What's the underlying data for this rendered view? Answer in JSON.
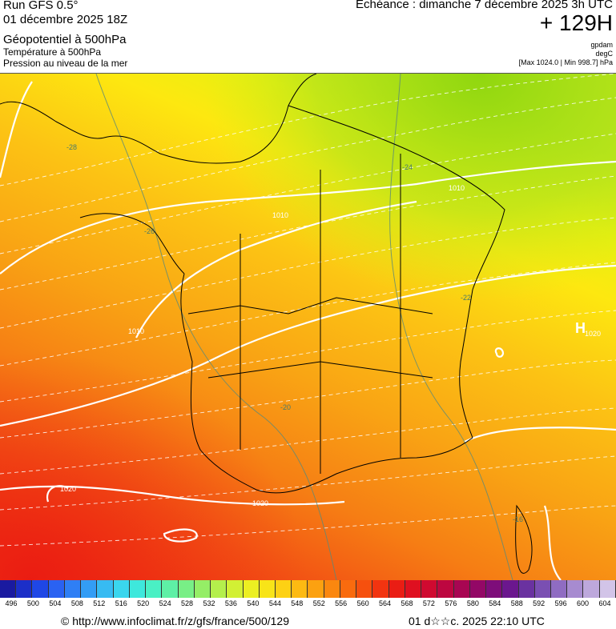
{
  "header": {
    "run": "Run GFS 0.5°",
    "run_date": "01 décembre 2025 18Z",
    "param1": "Géopotentiel à 500hPa",
    "param2": "Température à 500hPa",
    "param3": "Pression au niveau de la mer",
    "validity": "Echéance : dimanche 7 décembre 2025 3h UTC",
    "lead": "+ 129H",
    "unit1": "gpdam",
    "unit2": "degC",
    "minmax": "[Max 1024.0 | Min 998.7] hPa"
  },
  "map": {
    "isobar_labels": [
      "1010",
      "1010",
      "1010",
      "1020",
      "1020",
      "1020"
    ],
    "pressure_center": "H",
    "temp_labels": [
      "-28",
      "-26",
      "-24",
      "-22",
      "-20",
      "-16"
    ]
  },
  "scale": {
    "ticks": [
      "496",
      "500",
      "504",
      "508",
      "512",
      "516",
      "520",
      "524",
      "528",
      "532",
      "536",
      "540",
      "544",
      "548",
      "552",
      "556",
      "560",
      "564",
      "568",
      "572",
      "576",
      "580",
      "584",
      "588",
      "592",
      "596",
      "600",
      "604"
    ],
    "colors": [
      "#1a1aa0",
      "#1c2fc8",
      "#1f47e6",
      "#2a62f2",
      "#2f7ff5",
      "#339df5",
      "#37bbf2",
      "#3ad6ee",
      "#3ee8dc",
      "#4af0c4",
      "#5ef0a6",
      "#78ef86",
      "#95ee66",
      "#b4ef4c",
      "#d2f034",
      "#ecef22",
      "#f8e418",
      "#fdd114",
      "#fdba12",
      "#fca110",
      "#fb870f",
      "#f96b0e",
      "#f6500e",
      "#f23410",
      "#ea1d14",
      "#df1020",
      "#cf0a30",
      "#bd0740",
      "#a80652",
      "#930866",
      "#7e0d7a",
      "#6b178e",
      "#6a32a0",
      "#7a4fb2",
      "#8f6cc2",
      "#a78bd0",
      "#bda8dc",
      "#d2c4e8"
    ]
  },
  "footer": {
    "link": "© http://www.infoclimat.fr/z/gfs/france/500/129",
    "timestamp": "01 d☆☆c. 2025 22:10 UTC"
  }
}
